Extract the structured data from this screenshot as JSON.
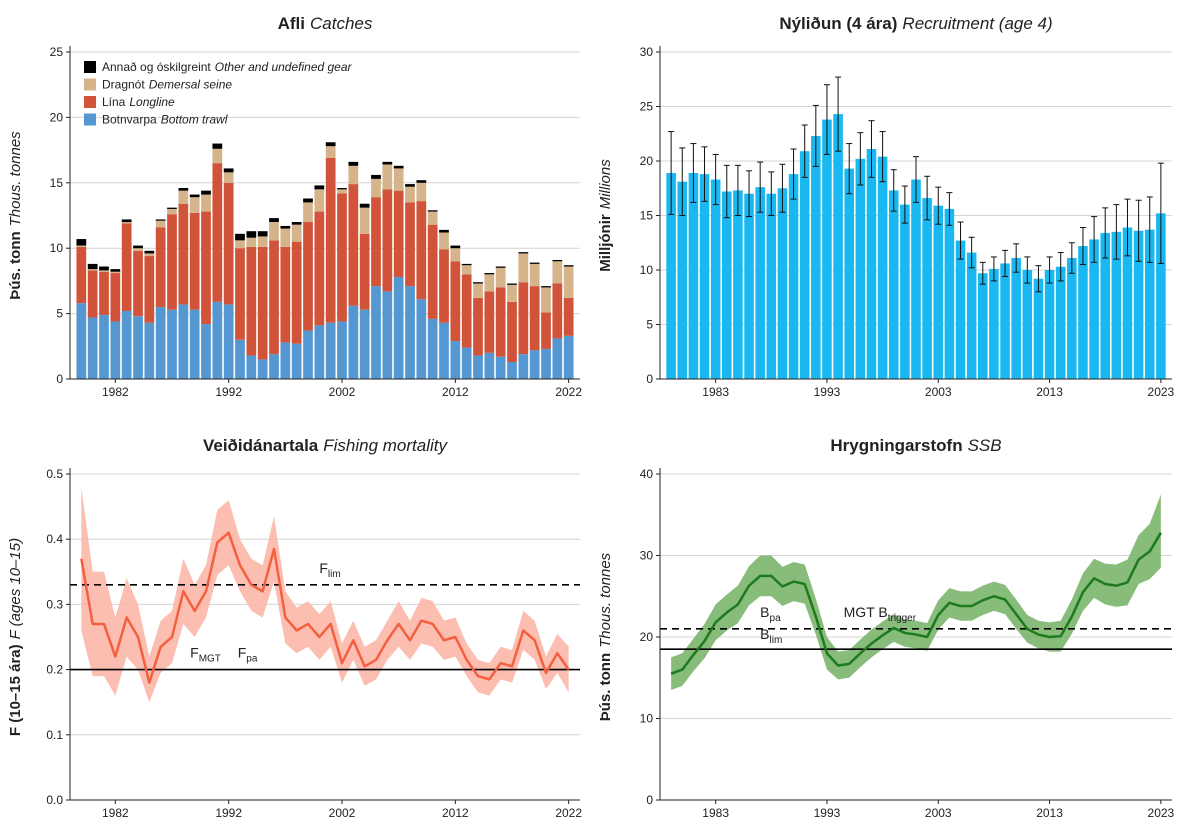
{
  "chart_data": [
    {
      "type": "stacked-bar",
      "title": "Afli",
      "title_en": "Catches",
      "ylabel": "Þús. tonn",
      "ylabel_en": "Thous. tonnes",
      "x": [
        1979,
        1980,
        1981,
        1982,
        1983,
        1984,
        1985,
        1986,
        1987,
        1988,
        1989,
        1990,
        1991,
        1992,
        1993,
        1994,
        1995,
        1996,
        1997,
        1998,
        1999,
        2000,
        2001,
        2002,
        2003,
        2004,
        2005,
        2006,
        2007,
        2008,
        2009,
        2010,
        2011,
        2012,
        2013,
        2014,
        2015,
        2016,
        2017,
        2018,
        2019,
        2020,
        2021,
        2022
      ],
      "xlim": [
        1978,
        2023
      ],
      "xticks": [
        1982,
        1992,
        2002,
        2012,
        2022
      ],
      "ylim": [
        0,
        25
      ],
      "yticks": [
        0,
        5,
        10,
        15,
        20,
        25
      ],
      "grid": true,
      "legend": "top-left",
      "series": [
        {
          "name": "Botnvarpa",
          "name_en": "Bottom trawl",
          "color": "#5597d0",
          "values": [
            5.8,
            4.7,
            4.9,
            4.4,
            5.2,
            4.8,
            4.3,
            5.5,
            5.3,
            5.7,
            5.3,
            4.2,
            5.9,
            5.7,
            3.0,
            1.8,
            1.5,
            1.9,
            2.8,
            2.7,
            3.7,
            4.1,
            4.3,
            4.4,
            5.6,
            5.3,
            7.1,
            6.7,
            7.8,
            7.1,
            6.1,
            4.6,
            4.3,
            2.9,
            2.4,
            1.8,
            2.0,
            1.7,
            1.3,
            1.9,
            2.2,
            2.3,
            3.1,
            3.3
          ]
        },
        {
          "name": "Lína",
          "name_en": "Longline",
          "color": "#d0533a",
          "values": [
            4.3,
            3.6,
            3.3,
            3.7,
            6.7,
            5.0,
            5.1,
            6.1,
            7.3,
            7.7,
            7.4,
            8.6,
            10.6,
            9.3,
            7.0,
            8.3,
            8.6,
            8.7,
            7.3,
            7.8,
            8.3,
            8.7,
            12.6,
            9.8,
            9.3,
            5.8,
            6.8,
            7.8,
            6.6,
            6.4,
            7.5,
            7.2,
            5.6,
            6.1,
            5.6,
            4.4,
            4.7,
            5.3,
            4.6,
            5.5,
            4.9,
            2.8,
            4.2,
            2.9
          ]
        },
        {
          "name": "Dragnót",
          "name_en": "Demersal seine",
          "color": "#d5b48c",
          "values": [
            0.1,
            0.1,
            0.1,
            0.1,
            0.1,
            0.2,
            0.2,
            0.5,
            0.4,
            1.0,
            1.2,
            1.3,
            1.1,
            0.8,
            0.6,
            0.7,
            0.8,
            1.4,
            1.4,
            1.3,
            1.5,
            1.7,
            0.9,
            0.3,
            1.4,
            2.0,
            1.4,
            1.9,
            1.7,
            1.2,
            1.4,
            1.0,
            1.3,
            1.0,
            0.7,
            1.1,
            1.3,
            1.5,
            1.3,
            2.2,
            1.7,
            1.9,
            1.7,
            2.4
          ]
        },
        {
          "name": "Annað og óskilgreint",
          "name_en": "Other and undefined gear",
          "color": "#000000",
          "values": [
            0.5,
            0.4,
            0.3,
            0.2,
            0.2,
            0.2,
            0.2,
            0.1,
            0.1,
            0.2,
            0.2,
            0.3,
            0.4,
            0.3,
            0.5,
            0.5,
            0.4,
            0.3,
            0.2,
            0.2,
            0.3,
            0.3,
            0.3,
            0.1,
            0.3,
            0.3,
            0.3,
            0.2,
            0.2,
            0.2,
            0.2,
            0.1,
            0.2,
            0.2,
            0.1,
            0.1,
            0.1,
            0.1,
            0.1,
            0.1,
            0.1,
            0.1,
            0.1,
            0.1
          ]
        }
      ]
    },
    {
      "type": "bar-error",
      "title": "Nýliðun (4 ára)",
      "title_en": "Recruitment (age 4)",
      "ylabel": "Milljónir",
      "ylabel_en": "Millions",
      "x": [
        1979,
        1980,
        1981,
        1982,
        1983,
        1984,
        1985,
        1986,
        1987,
        1988,
        1989,
        1990,
        1991,
        1992,
        1993,
        1994,
        1995,
        1996,
        1997,
        1998,
        1999,
        2000,
        2001,
        2002,
        2003,
        2004,
        2005,
        2006,
        2007,
        2008,
        2009,
        2010,
        2011,
        2012,
        2013,
        2014,
        2015,
        2016,
        2017,
        2018,
        2019,
        2020,
        2021,
        2022,
        2023
      ],
      "xlim": [
        1978,
        2024
      ],
      "xticks": [
        1983,
        1993,
        2003,
        2013,
        2023
      ],
      "ylim": [
        0,
        30
      ],
      "yticks": [
        0,
        5,
        10,
        15,
        20,
        25,
        30
      ],
      "grid": true,
      "color": "#1ab8f0",
      "values": [
        18.9,
        18.1,
        18.9,
        18.8,
        18.3,
        17.2,
        17.3,
        17.0,
        17.6,
        17.0,
        17.5,
        18.8,
        20.9,
        22.3,
        23.8,
        24.3,
        19.3,
        20.2,
        21.1,
        20.4,
        17.3,
        16.0,
        18.3,
        16.6,
        15.9,
        15.6,
        12.7,
        11.6,
        9.7,
        10.1,
        10.6,
        11.1,
        10.0,
        9.2,
        10.0,
        10.3,
        11.1,
        12.2,
        12.8,
        13.4,
        13.5,
        13.9,
        13.6,
        13.7,
        15.2
      ],
      "errors": [
        3.8,
        3.1,
        2.7,
        2.5,
        2.3,
        2.4,
        2.3,
        2.1,
        2.3,
        2.0,
        2.2,
        2.3,
        2.4,
        2.8,
        3.2,
        3.4,
        2.3,
        2.4,
        2.6,
        2.3,
        1.9,
        1.7,
        2.1,
        2.0,
        1.7,
        1.5,
        1.7,
        1.4,
        1.0,
        1.1,
        1.2,
        1.3,
        1.2,
        1.2,
        1.2,
        1.3,
        1.4,
        1.7,
        2.1,
        2.3,
        2.5,
        2.6,
        2.8,
        3.0,
        4.6
      ]
    },
    {
      "type": "line-band",
      "title": "Veiðidánartala",
      "title_en": "Fishing mortality",
      "ylabel": "F (10–15 ára)",
      "ylabel_en": "F (ages 10–15)",
      "x": [
        1979,
        1980,
        1981,
        1982,
        1983,
        1984,
        1985,
        1986,
        1987,
        1988,
        1989,
        1990,
        1991,
        1992,
        1993,
        1994,
        1995,
        1996,
        1997,
        1998,
        1999,
        2000,
        2001,
        2002,
        2003,
        2004,
        2005,
        2006,
        2007,
        2008,
        2009,
        2010,
        2011,
        2012,
        2013,
        2014,
        2015,
        2016,
        2017,
        2018,
        2019,
        2020,
        2021,
        2022
      ],
      "xlim": [
        1978,
        2023
      ],
      "xticks": [
        1982,
        1992,
        2002,
        2012,
        2022
      ],
      "ylim": [
        0,
        0.5
      ],
      "yticks": [
        {
          "value": 0,
          "label": "0.0"
        },
        0.1,
        0.2,
        0.3,
        0.4,
        0.5
      ],
      "grid": true,
      "series": [
        {
          "color": "#f4603f",
          "band_color": "#fbb7a8",
          "values": [
            0.37,
            0.27,
            0.27,
            0.22,
            0.28,
            0.25,
            0.18,
            0.235,
            0.25,
            0.32,
            0.29,
            0.32,
            0.395,
            0.41,
            0.36,
            0.33,
            0.32,
            0.385,
            0.28,
            0.26,
            0.27,
            0.25,
            0.27,
            0.21,
            0.245,
            0.205,
            0.215,
            0.245,
            0.27,
            0.245,
            0.275,
            0.27,
            0.245,
            0.25,
            0.215,
            0.19,
            0.185,
            0.21,
            0.205,
            0.26,
            0.245,
            0.195,
            0.225,
            0.2
          ],
          "lower": [
            0.26,
            0.19,
            0.19,
            0.16,
            0.22,
            0.2,
            0.15,
            0.195,
            0.21,
            0.27,
            0.25,
            0.28,
            0.345,
            0.36,
            0.32,
            0.29,
            0.28,
            0.335,
            0.24,
            0.225,
            0.235,
            0.215,
            0.235,
            0.18,
            0.215,
            0.175,
            0.185,
            0.215,
            0.235,
            0.215,
            0.24,
            0.235,
            0.215,
            0.22,
            0.19,
            0.165,
            0.16,
            0.185,
            0.18,
            0.23,
            0.215,
            0.17,
            0.195,
            0.165
          ],
          "upper": [
            0.48,
            0.35,
            0.35,
            0.28,
            0.34,
            0.3,
            0.22,
            0.275,
            0.29,
            0.37,
            0.33,
            0.36,
            0.445,
            0.46,
            0.4,
            0.37,
            0.36,
            0.435,
            0.32,
            0.295,
            0.305,
            0.285,
            0.305,
            0.24,
            0.275,
            0.235,
            0.245,
            0.275,
            0.305,
            0.275,
            0.31,
            0.305,
            0.275,
            0.28,
            0.24,
            0.215,
            0.21,
            0.235,
            0.23,
            0.29,
            0.275,
            0.22,
            0.255,
            0.235
          ]
        }
      ],
      "hlines": [
        {
          "value": 0.33,
          "dashed": true,
          "labels": [
            {
              "text": "F",
              "sub": "lim"
            }
          ]
        },
        {
          "value": 0.2,
          "dashed": false,
          "labels": [
            {
              "text": "F",
              "sub": "MGT"
            },
            {
              "text": "F",
              "sub": "pa"
            }
          ]
        }
      ]
    },
    {
      "type": "line-band",
      "title": "Hrygningarstofn",
      "title_en": "SSB",
      "ylabel": "Þús. tonn",
      "ylabel_en": "Thous. tonnes",
      "x": [
        1979,
        1980,
        1981,
        1982,
        1983,
        1984,
        1985,
        1986,
        1987,
        1988,
        1989,
        1990,
        1991,
        1992,
        1993,
        1994,
        1995,
        1996,
        1997,
        1998,
        1999,
        2000,
        2001,
        2002,
        2003,
        2004,
        2005,
        2006,
        2007,
        2008,
        2009,
        2010,
        2011,
        2012,
        2013,
        2014,
        2015,
        2016,
        2017,
        2018,
        2019,
        2020,
        2021,
        2022,
        2023
      ],
      "xlim": [
        1978,
        2024
      ],
      "xticks": [
        1983,
        1993,
        2003,
        2013,
        2023
      ],
      "ylim": [
        0,
        40
      ],
      "yticks": [
        0,
        10,
        20,
        30,
        40
      ],
      "grid": true,
      "series": [
        {
          "color": "#1e7a1e",
          "band_color": "#7ab56c",
          "values": [
            15.5,
            16.0,
            17.8,
            19.5,
            21.8,
            23.0,
            24.0,
            26.3,
            27.5,
            27.5,
            26.2,
            26.8,
            26.5,
            22.5,
            18.0,
            16.5,
            16.7,
            18.0,
            19.2,
            20.2,
            21.1,
            20.5,
            20.3,
            20.0,
            22.7,
            24.2,
            23.8,
            23.8,
            24.5,
            25.0,
            24.6,
            22.8,
            21.0,
            20.3,
            20.0,
            20.1,
            22.5,
            25.5,
            27.2,
            26.5,
            26.3,
            26.7,
            29.5,
            30.5,
            32.8
          ],
          "lower": [
            13.5,
            14.0,
            15.8,
            17.4,
            19.6,
            20.8,
            21.7,
            23.9,
            25.0,
            25.0,
            23.8,
            24.4,
            24.1,
            20.3,
            16.0,
            14.8,
            15.0,
            16.3,
            17.5,
            18.5,
            19.4,
            18.8,
            18.6,
            18.3,
            20.9,
            22.4,
            22.0,
            22.0,
            22.7,
            23.2,
            22.8,
            21.0,
            19.3,
            18.6,
            18.2,
            18.2,
            20.4,
            23.2,
            24.8,
            24.0,
            23.7,
            23.9,
            26.5,
            27.1,
            28.5
          ],
          "upper": [
            17.5,
            18.0,
            19.8,
            21.6,
            24.0,
            25.2,
            26.3,
            28.7,
            30.0,
            30.0,
            28.6,
            29.2,
            28.9,
            24.7,
            20.0,
            18.2,
            18.4,
            19.7,
            20.9,
            21.9,
            22.8,
            22.2,
            22.0,
            21.7,
            24.5,
            26.0,
            25.6,
            25.6,
            26.3,
            26.8,
            26.4,
            24.6,
            22.7,
            22.0,
            21.8,
            22.0,
            24.6,
            27.8,
            29.6,
            29.0,
            28.9,
            29.5,
            32.5,
            33.9,
            37.5
          ]
        }
      ],
      "hlines": [
        {
          "value": 21,
          "dashed": true,
          "labels": [
            {
              "text": "B",
              "sub": "pa"
            },
            {
              "text": "MGT B",
              "sub": "trigger"
            }
          ]
        },
        {
          "value": 18.5,
          "dashed": false,
          "labels": [
            {
              "text": "B",
              "sub": "lim"
            }
          ]
        }
      ]
    }
  ]
}
